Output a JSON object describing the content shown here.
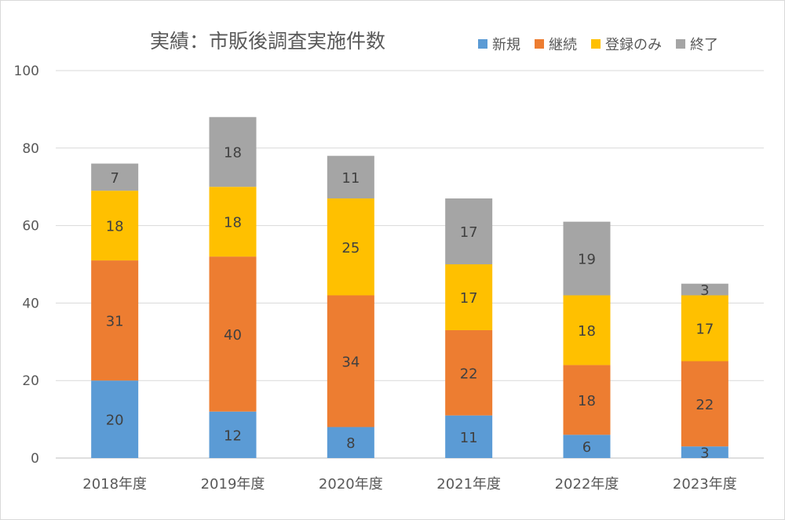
{
  "chart_data": {
    "type": "bar",
    "stacked": true,
    "title": "実績：市販後調査実施件数",
    "categories": [
      "2018年度",
      "2019年度",
      "2020年度",
      "2021年度",
      "2022年度",
      "2023年度"
    ],
    "series": [
      {
        "name": "新規",
        "color": "#5b9bd5",
        "values": [
          20,
          12,
          8,
          11,
          6,
          3
        ]
      },
      {
        "name": "継続",
        "color": "#ed7d31",
        "values": [
          31,
          40,
          34,
          22,
          18,
          22
        ]
      },
      {
        "name": "登録のみ",
        "color": "#ffc000",
        "values": [
          18,
          18,
          25,
          17,
          18,
          17
        ]
      },
      {
        "name": "終了",
        "color": "#a5a5a5",
        "values": [
          7,
          18,
          11,
          17,
          19,
          3
        ]
      }
    ],
    "xlabel": "",
    "ylabel": "",
    "ylim": [
      0,
      100
    ],
    "yticks": [
      0,
      20,
      40,
      60,
      80,
      100
    ],
    "grid": true,
    "legend_position": "top-right"
  }
}
